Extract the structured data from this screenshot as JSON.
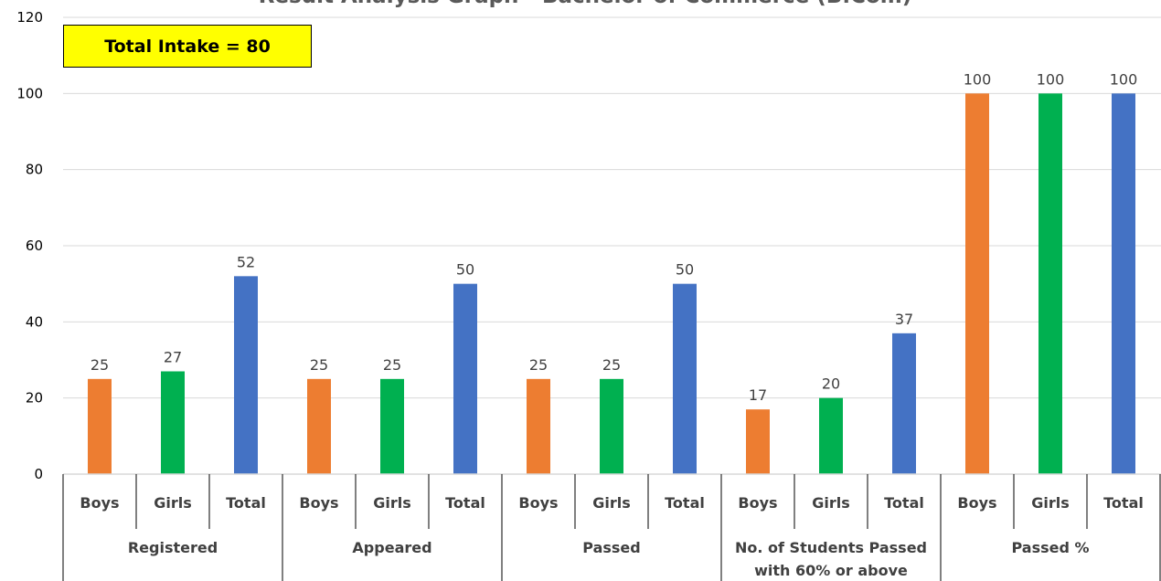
{
  "chart_data": {
    "type": "bar",
    "title": "Result Analysis Graph - Bachelor of Commerce (B.Com)",
    "annotation": "Total Intake = 80",
    "ylim": [
      0,
      120
    ],
    "yticks": [
      0,
      20,
      40,
      60,
      80,
      100,
      120
    ],
    "grid": true,
    "groups": [
      "Registered",
      "Appeared",
      "Passed",
      "No. of Students Passed with 60% or above",
      "Passed %"
    ],
    "subcategories": [
      "Boys",
      "Girls",
      "Total"
    ],
    "values": [
      25,
      27,
      52,
      25,
      25,
      50,
      25,
      25,
      50,
      17,
      20,
      37,
      100,
      100,
      100
    ],
    "colors": {
      "Boys": "#ed7d31",
      "Girls": "#00b050",
      "Total": "#4472c4"
    }
  }
}
